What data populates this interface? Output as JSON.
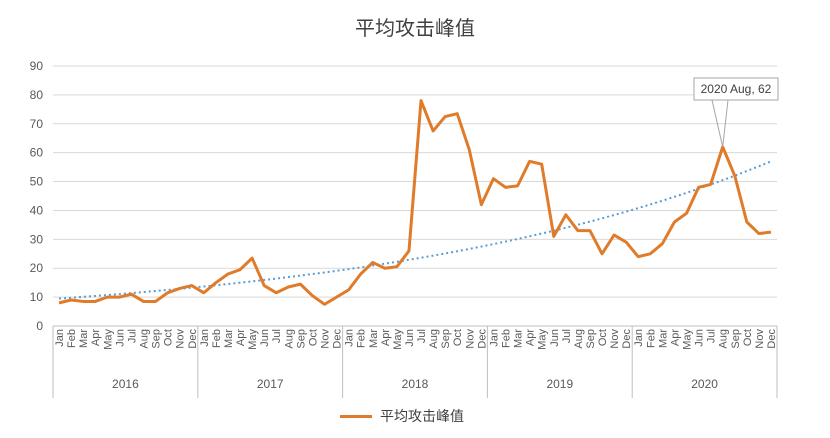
{
  "chart_data": {
    "type": "line",
    "title": "平均攻击峰值",
    "ylim": [
      0,
      90
    ],
    "y_ticks": [
      0,
      10,
      20,
      30,
      40,
      50,
      60,
      70,
      80,
      90
    ],
    "grid": "horizontal",
    "legend_position": "bottom",
    "years": [
      "2016",
      "2017",
      "2018",
      "2019",
      "2020"
    ],
    "months": [
      "Jan",
      "Feb",
      "Mar",
      "Apr",
      "May",
      "Jun",
      "Jul",
      "Aug",
      "Sep",
      "Oct",
      "Nov",
      "Dec"
    ],
    "series": [
      {
        "name": "平均攻击峰值",
        "color": "#e07b2a",
        "values": [
          8,
          9,
          8.5,
          8.5,
          10,
          10,
          11,
          8.5,
          8.5,
          11.5,
          13,
          14,
          11.5,
          15,
          18,
          19.5,
          23.5,
          14,
          11.5,
          13.5,
          14.5,
          10.5,
          7.5,
          10,
          12.5,
          18,
          22,
          20,
          20.5,
          26,
          78,
          67.5,
          72.5,
          73.5,
          61,
          42,
          51,
          48,
          48.5,
          57,
          56,
          31,
          38.5,
          33,
          33,
          25,
          31.5,
          29,
          24,
          25,
          28.5,
          36,
          39,
          48,
          49,
          62,
          52,
          36,
          32,
          32.5
        ]
      }
    ],
    "trendline": {
      "type": "exponential",
      "color": "#5b9bd5",
      "start": 9.5,
      "end": 57
    },
    "annotation": {
      "label": "2020 Aug, 62",
      "year": "2020",
      "month": "Aug",
      "value": 62
    }
  }
}
